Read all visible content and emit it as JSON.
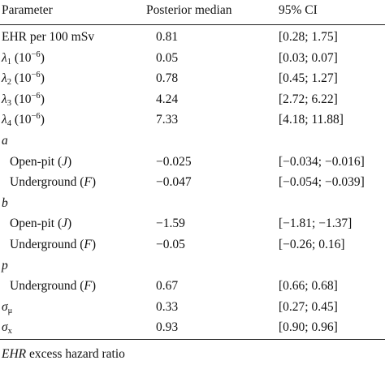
{
  "table": {
    "header": [
      "Parameter",
      "Posterior median",
      "95% CI"
    ],
    "body": [
      {
        "label": [
          {
            "t": "EHR per 100 mSv"
          }
        ],
        "median": "0.81",
        "ci": "[0.28; 1.75]"
      },
      {
        "label": [
          {
            "t": "λ",
            "s": "i"
          },
          {
            "t": "1",
            "s": "sub"
          },
          {
            "t": " (10"
          },
          {
            "t": "−6",
            "s": "sup"
          },
          {
            "t": ")"
          }
        ],
        "median": "0.05",
        "ci": "[0.03; 0.07]"
      },
      {
        "label": [
          {
            "t": "λ",
            "s": "i"
          },
          {
            "t": "2",
            "s": "sub"
          },
          {
            "t": " (10"
          },
          {
            "t": "−6",
            "s": "sup"
          },
          {
            "t": ")"
          }
        ],
        "median": "0.78",
        "ci": "[0.45; 1.27]"
      },
      {
        "label": [
          {
            "t": "λ",
            "s": "i"
          },
          {
            "t": "3",
            "s": "sub"
          },
          {
            "t": " (10"
          },
          {
            "t": "−6",
            "s": "sup"
          },
          {
            "t": ")"
          }
        ],
        "median": "4.24",
        "ci": "[2.72; 6.22]"
      },
      {
        "label": [
          {
            "t": "λ",
            "s": "i"
          },
          {
            "t": "4",
            "s": "sub"
          },
          {
            "t": " (10"
          },
          {
            "t": "−6",
            "s": "sup"
          },
          {
            "t": ")"
          }
        ],
        "median": "7.33",
        "ci": "[4.18; 11.88]"
      },
      {
        "label": [
          {
            "t": "a",
            "s": "i"
          }
        ],
        "rows": [
          {
            "label": [
              {
                "t": "Open-pit ("
              },
              {
                "t": "J",
                "s": "i"
              },
              {
                "t": ")"
              }
            ],
            "median": "−0.025",
            "ci": "[−0.034; −0.016]"
          },
          {
            "label": [
              {
                "t": "Underground ("
              },
              {
                "t": "F",
                "s": "i"
              },
              {
                "t": ")"
              }
            ],
            "median": "−0.047",
            "ci": "[−0.054; −0.039]"
          }
        ]
      },
      {
        "label": [
          {
            "t": "b",
            "s": "i"
          }
        ],
        "rows": [
          {
            "label": [
              {
                "t": "Open-pit ("
              },
              {
                "t": "J",
                "s": "i"
              },
              {
                "t": ")"
              }
            ],
            "median": "−1.59",
            "ci": "[−1.81; −1.37]"
          },
          {
            "label": [
              {
                "t": "Underground ("
              },
              {
                "t": "F",
                "s": "i"
              },
              {
                "t": ")"
              }
            ],
            "median": "−0.05",
            "ci": "[−0.26; 0.16]"
          }
        ]
      },
      {
        "label": [
          {
            "t": "p",
            "s": "i"
          }
        ],
        "rows": [
          {
            "label": [
              {
                "t": "Underground ("
              },
              {
                "t": "F",
                "s": "i"
              },
              {
                "t": ")"
              }
            ],
            "median": "0.67",
            "ci": "[0.66; 0.68]"
          }
        ]
      },
      {
        "label": [
          {
            "t": "σ",
            "s": "i"
          },
          {
            "t": "μ",
            "s": "sub"
          }
        ],
        "median": "0.33",
        "ci": "[0.27; 0.45]"
      },
      {
        "label": [
          {
            "t": "σ",
            "s": "i"
          },
          {
            "t": "x",
            "s": "sub"
          }
        ],
        "median": "0.93",
        "ci": "[0.90; 0.96]"
      }
    ],
    "footnote": [
      {
        "t": "EHR",
        "s": "i"
      },
      {
        "t": " excess hazard ratio"
      }
    ]
  }
}
